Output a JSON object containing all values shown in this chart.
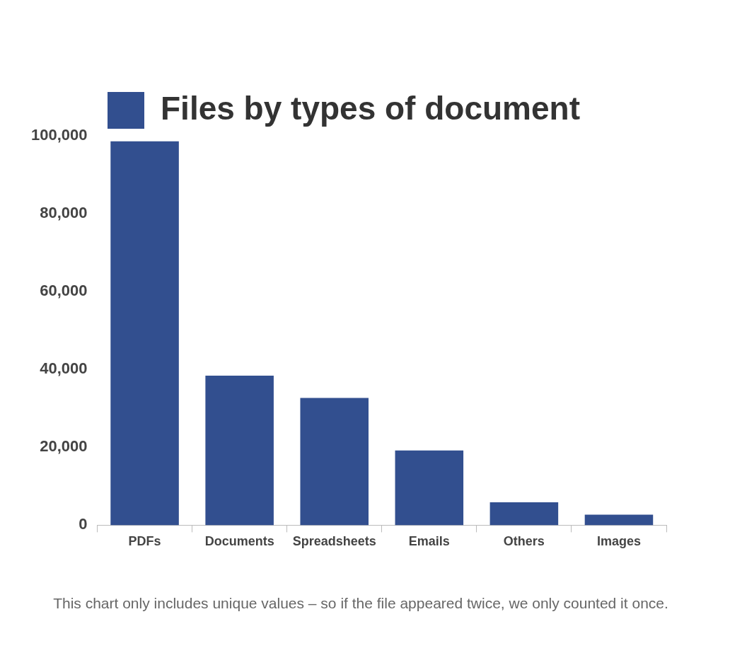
{
  "chart_data": {
    "type": "bar",
    "categories": [
      "PDFs",
      "Documents",
      "Spreadsheets",
      "Emails",
      "Others",
      "Images"
    ],
    "series": [
      {
        "name": "Files by types of document",
        "color": "#324f8f",
        "values": [
          98600,
          38400,
          32700,
          19200,
          5900,
          2700
        ]
      }
    ],
    "ylim": [
      0,
      100000
    ],
    "yticks": [
      {
        "value": 0,
        "label": "0"
      },
      {
        "value": 20000,
        "label": "20,000"
      },
      {
        "value": 40000,
        "label": "40,000"
      },
      {
        "value": 60000,
        "label": "60,000"
      },
      {
        "value": 80000,
        "label": "80,000"
      },
      {
        "value": 100000,
        "label": "100,000"
      }
    ],
    "grid": false,
    "legend": "top",
    "annotations": [
      "This chart only includes unique values – so if the file appeared twice, we only counted it once."
    ]
  }
}
